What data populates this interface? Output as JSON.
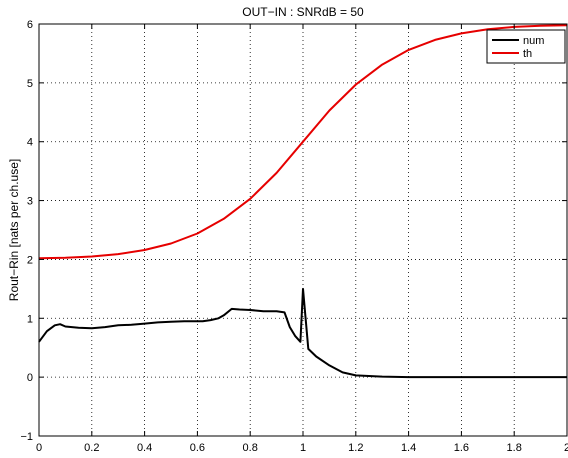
{
  "chart_data": {
    "type": "line",
    "title": "OUT−IN : SNRdB = 50",
    "xlabel": "",
    "ylabel": "Rout−Rin [nats per ch.use]",
    "xlim": [
      0,
      2
    ],
    "ylim": [
      -1,
      6
    ],
    "xticks": [
      "0",
      "0.2",
      "0.4",
      "0.6",
      "0.8",
      "1",
      "1.2",
      "1.4",
      "1.6",
      "1.8",
      "2"
    ],
    "yticks": [
      "−1",
      "0",
      "1",
      "2",
      "3",
      "4",
      "5",
      "6"
    ],
    "grid": true,
    "legend_position": "top-right",
    "colors": {
      "num": "#000000",
      "th": "#e60000"
    },
    "series": [
      {
        "name": "num",
        "x": [
          0,
          0.03,
          0.06,
          0.08,
          0.1,
          0.15,
          0.2,
          0.25,
          0.3,
          0.35,
          0.4,
          0.45,
          0.5,
          0.55,
          0.6,
          0.62,
          0.65,
          0.68,
          0.7,
          0.73,
          0.76,
          0.8,
          0.85,
          0.9,
          0.93,
          0.95,
          0.97,
          0.99,
          1.0,
          1.01,
          1.02,
          1.05,
          1.1,
          1.15,
          1.2,
          1.3,
          1.4,
          1.5,
          1.6,
          1.7,
          1.8,
          1.9,
          2.0
        ],
        "y": [
          0.6,
          0.78,
          0.88,
          0.9,
          0.86,
          0.84,
          0.83,
          0.85,
          0.88,
          0.89,
          0.91,
          0.93,
          0.94,
          0.95,
          0.95,
          0.95,
          0.97,
          1.0,
          1.05,
          1.16,
          1.15,
          1.14,
          1.12,
          1.12,
          1.1,
          0.85,
          0.7,
          0.6,
          1.5,
          1.0,
          0.48,
          0.35,
          0.2,
          0.08,
          0.03,
          0.01,
          0.0,
          0.0,
          0.0,
          0.0,
          0.0,
          0.0,
          0.0
        ]
      },
      {
        "name": "th",
        "x": [
          0,
          0.1,
          0.2,
          0.3,
          0.4,
          0.5,
          0.6,
          0.7,
          0.8,
          0.9,
          1.0,
          1.1,
          1.2,
          1.3,
          1.4,
          1.5,
          1.6,
          1.7,
          1.8,
          1.9,
          2.0
        ],
        "y": [
          2.02,
          2.03,
          2.05,
          2.09,
          2.16,
          2.27,
          2.44,
          2.69,
          3.03,
          3.47,
          4.0,
          4.53,
          4.97,
          5.31,
          5.56,
          5.73,
          5.84,
          5.91,
          5.95,
          5.97,
          5.98
        ]
      }
    ]
  }
}
